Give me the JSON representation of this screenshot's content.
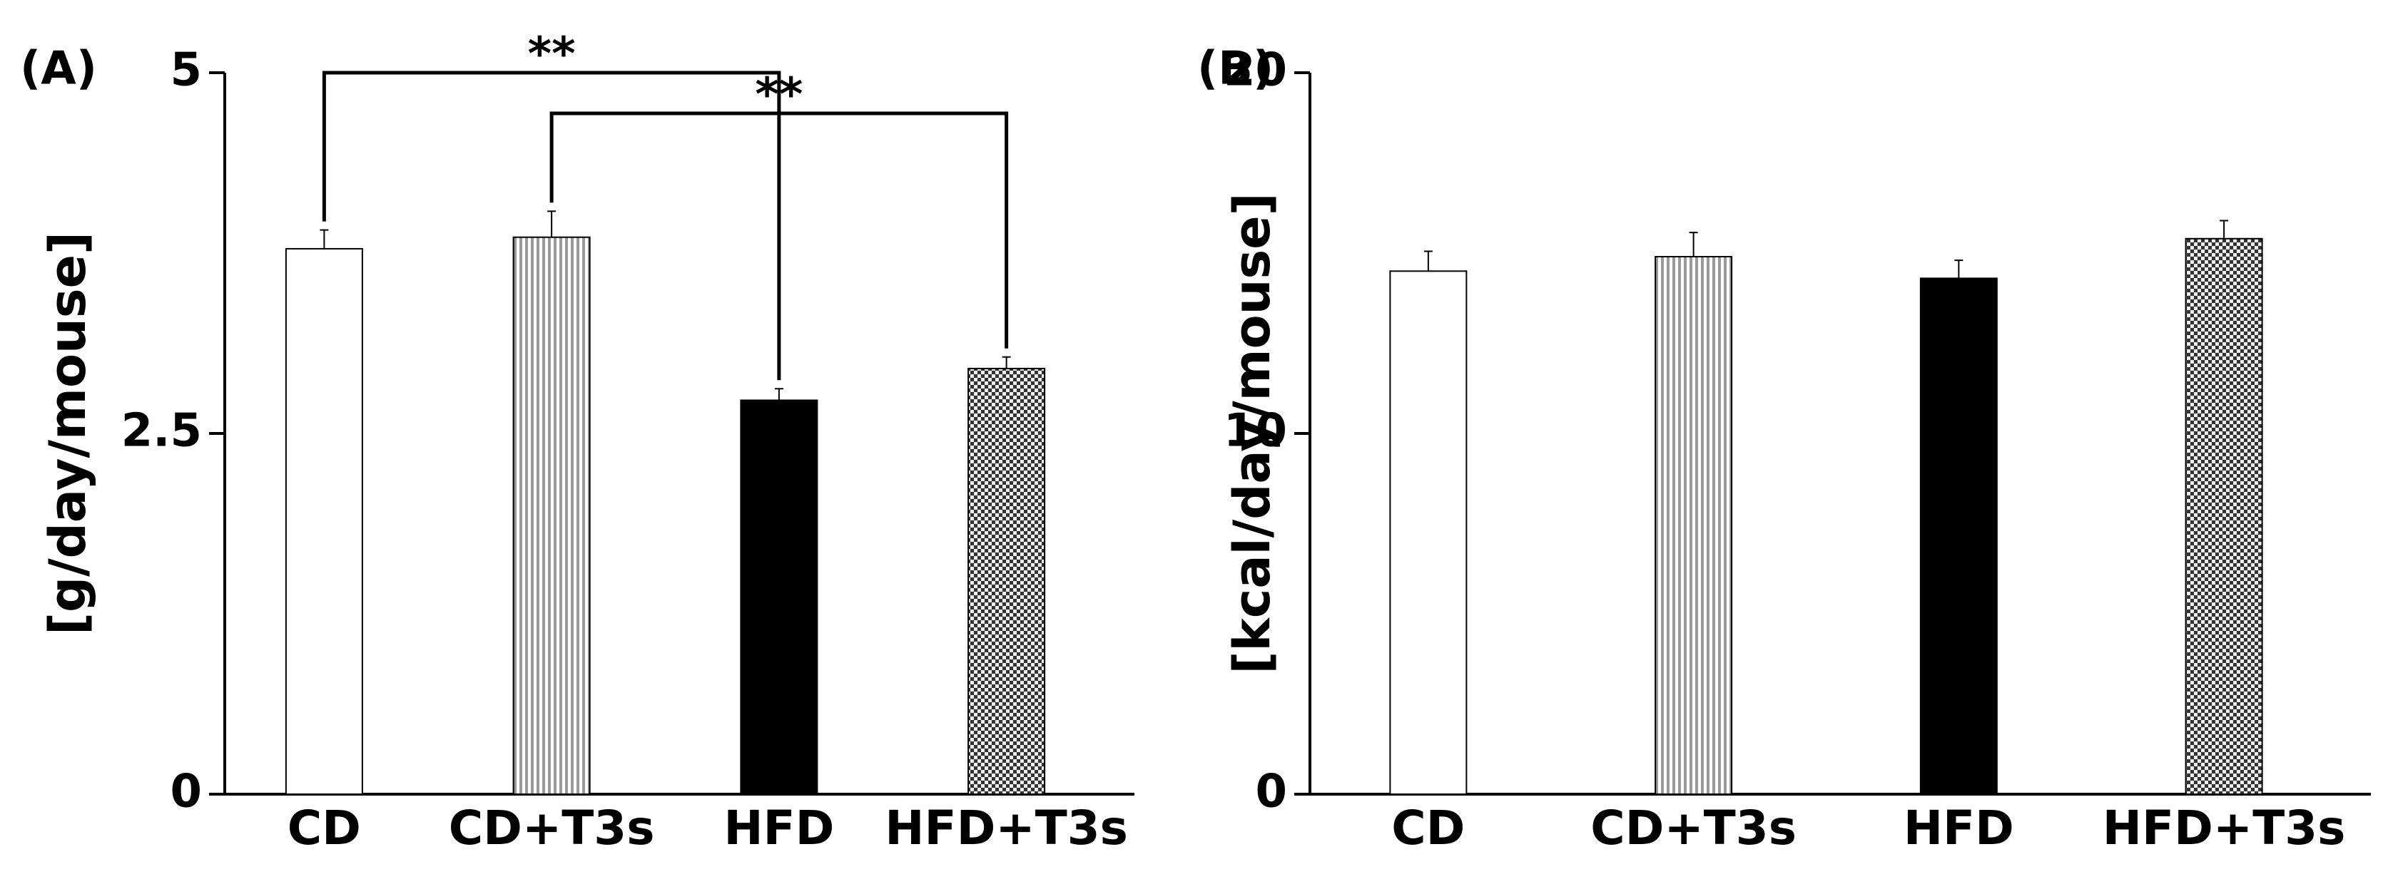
{
  "chart_data": [
    {
      "type": "bar",
      "title": "(A)",
      "ylabel": "[g/day/mouse]",
      "categories": [
        "CD",
        "CD+T3s",
        "HFD",
        "HFD+T3s"
      ],
      "values": [
        3.78,
        3.86,
        2.73,
        2.95
      ],
      "errors": [
        0.13,
        0.18,
        0.08,
        0.08
      ],
      "bar_fills": [
        "white",
        "vertical-stripes",
        "black",
        "checker"
      ],
      "ylim": [
        0,
        5
      ],
      "yticks": [
        0,
        2.5,
        5
      ],
      "annotations": [
        {
          "between": [
            "CD",
            "HFD"
          ],
          "label": "**"
        },
        {
          "between": [
            "CD+T3s",
            "HFD+T3s"
          ],
          "label": "**"
        }
      ]
    },
    {
      "type": "bar",
      "title": "(B)",
      "ylabel": "[kcal/day/mouse]",
      "categories": [
        "CD",
        "CD+T3s",
        "HFD",
        "HFD+T3s"
      ],
      "values": [
        14.5,
        14.9,
        14.3,
        15.4
      ],
      "errors": [
        0.55,
        0.67,
        0.5,
        0.5
      ],
      "bar_fills": [
        "white",
        "vertical-stripes",
        "black",
        "checker"
      ],
      "ylim": [
        0,
        20
      ],
      "yticks": [
        0,
        10,
        20
      ]
    }
  ]
}
